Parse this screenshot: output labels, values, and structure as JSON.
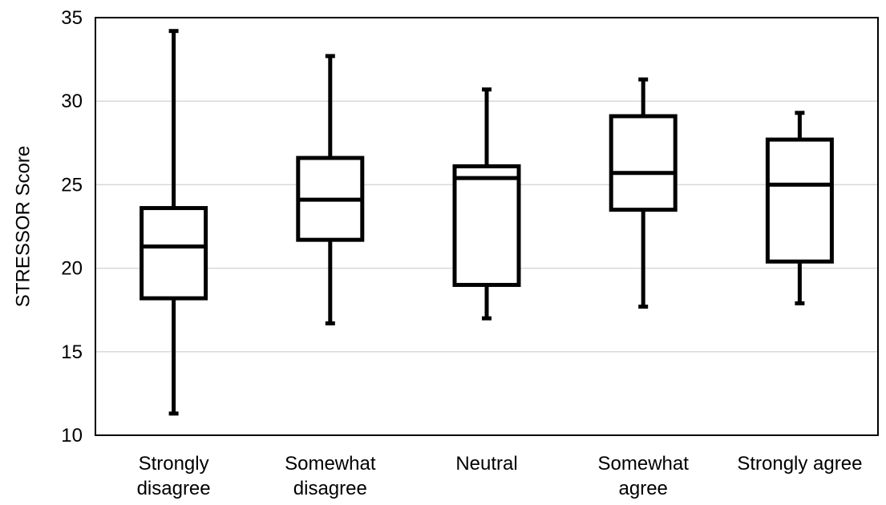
{
  "chart_data": {
    "type": "box",
    "title": "",
    "xlabel": "",
    "ylabel": "STRESSOR Score",
    "ylim": [
      10,
      35
    ],
    "yticks": [
      10,
      15,
      20,
      25,
      30,
      35
    ],
    "grid": true,
    "legend": "none",
    "colors": {
      "box": "#000000",
      "grid": "#d9d9d9",
      "background": "#ffffff"
    },
    "categories": [
      [
        "Strongly",
        "disagree"
      ],
      [
        "Somewhat",
        "disagree"
      ],
      [
        "Neutral"
      ],
      [
        "Somewhat",
        "agree"
      ],
      [
        "Strongly agree"
      ]
    ],
    "boxes": [
      {
        "min": 11.3,
        "q1": 18.2,
        "median": 21.3,
        "q3": 23.6,
        "max": 34.2
      },
      {
        "min": 16.7,
        "q1": 21.7,
        "median": 24.1,
        "q3": 26.6,
        "max": 32.7
      },
      {
        "min": 17.0,
        "q1": 19.0,
        "median": 25.4,
        "q3": 26.1,
        "max": 30.7
      },
      {
        "min": 17.7,
        "q1": 23.5,
        "median": 25.7,
        "q3": 29.1,
        "max": 31.3
      },
      {
        "min": 17.9,
        "q1": 20.4,
        "median": 25.0,
        "q3": 27.7,
        "max": 29.3
      }
    ]
  }
}
